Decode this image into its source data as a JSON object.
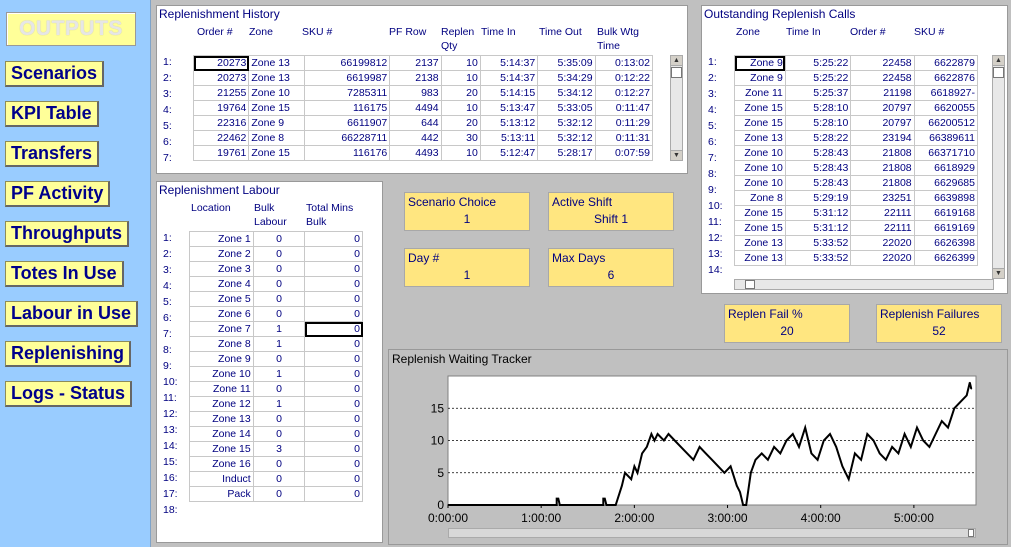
{
  "nav": {
    "title": "OUTPUTS",
    "buttons": [
      "Scenarios",
      "KPI Table",
      "Transfers",
      "PF Activity",
      "Throughputs",
      "Totes In Use",
      "Labour in Use",
      "Replenishing",
      "Logs - Status"
    ]
  },
  "history": {
    "title": "Replenishment History",
    "headers": [
      "Order #",
      "Zone",
      "SKU #",
      "PF Row",
      "Replen Qty",
      "Time In",
      "Time Out",
      "Bulk Wtg Time"
    ],
    "rows": [
      [
        "1:",
        "20273",
        "Zone 13",
        "66199812",
        "2137",
        "10",
        "5:14:37",
        "5:35:09",
        "0:13:02"
      ],
      [
        "2:",
        "20273",
        "Zone 13",
        "6619987",
        "2138",
        "10",
        "5:14:37",
        "5:34:29",
        "0:12:22"
      ],
      [
        "3:",
        "21255",
        "Zone 10",
        "7285311",
        "983",
        "20",
        "5:14:15",
        "5:34:12",
        "0:12:27"
      ],
      [
        "4:",
        "19764",
        "Zone 15",
        "116175",
        "4494",
        "10",
        "5:13:47",
        "5:33:05",
        "0:11:47"
      ],
      [
        "5:",
        "22316",
        "Zone  9",
        "6611907",
        "644",
        "20",
        "5:13:12",
        "5:32:12",
        "0:11:29"
      ],
      [
        "6:",
        "22462",
        "Zone  8",
        "66228711",
        "442",
        "30",
        "5:13:11",
        "5:32:12",
        "0:11:31"
      ],
      [
        "7:",
        "19761",
        "Zone 15",
        "116176",
        "4493",
        "10",
        "5:12:47",
        "5:28:17",
        "0:07:59"
      ]
    ]
  },
  "outstanding": {
    "title": "Outstanding Replenish Calls",
    "headers": [
      "Zone",
      "Time In",
      "Order #",
      "SKU #"
    ],
    "rows": [
      [
        "1:",
        "Zone  9",
        "5:25:22",
        "22458",
        "6622879"
      ],
      [
        "2:",
        "Zone  9",
        "5:25:22",
        "22458",
        "6622876"
      ],
      [
        "3:",
        "Zone 11",
        "5:25:37",
        "21198",
        "6618927-"
      ],
      [
        "4:",
        "Zone 15",
        "5:28:10",
        "20797",
        "6620055"
      ],
      [
        "5:",
        "Zone 15",
        "5:28:10",
        "20797",
        "66200512"
      ],
      [
        "6:",
        "Zone 13",
        "5:28:22",
        "23194",
        "66389611"
      ],
      [
        "7:",
        "Zone 10",
        "5:28:43",
        "21808",
        "66371710"
      ],
      [
        "8:",
        "Zone 10",
        "5:28:43",
        "21808",
        "6618929"
      ],
      [
        "9:",
        "Zone 10",
        "5:28:43",
        "21808",
        "6629685"
      ],
      [
        "10:",
        "Zone  8",
        "5:29:19",
        "23251",
        "6639898"
      ],
      [
        "11:",
        "Zone 15",
        "5:31:12",
        "22111",
        "6619168"
      ],
      [
        "12:",
        "Zone 15",
        "5:31:12",
        "22111",
        "6619169"
      ],
      [
        "13:",
        "Zone 13",
        "5:33:52",
        "22020",
        "6626398"
      ],
      [
        "14:",
        "Zone 13",
        "5:33:52",
        "22020",
        "6626399"
      ]
    ]
  },
  "labour": {
    "title": "Replenishment Labour",
    "headers": [
      "Location",
      "Bulk Labour",
      "Total Mins Bulk"
    ],
    "rows": [
      [
        "1:",
        "Zone  1",
        "0",
        "0"
      ],
      [
        "2:",
        "Zone  2",
        "0",
        "0"
      ],
      [
        "3:",
        "Zone  3",
        "0",
        "0"
      ],
      [
        "4:",
        "Zone  4",
        "0",
        "0"
      ],
      [
        "5:",
        "Zone  5",
        "0",
        "0"
      ],
      [
        "6:",
        "Zone  6",
        "0",
        "0"
      ],
      [
        "7:",
        "Zone  7",
        "1",
        "0"
      ],
      [
        "8:",
        "Zone  8",
        "1",
        "0"
      ],
      [
        "9:",
        "Zone  9",
        "0",
        "0"
      ],
      [
        "10:",
        "Zone 10",
        "1",
        "0"
      ],
      [
        "11:",
        "Zone 11",
        "0",
        "0"
      ],
      [
        "12:",
        "Zone 12",
        "1",
        "0"
      ],
      [
        "13:",
        "Zone 13",
        "0",
        "0"
      ],
      [
        "14:",
        "Zone 14",
        "0",
        "0"
      ],
      [
        "15:",
        "Zone 15",
        "3",
        "0"
      ],
      [
        "16:",
        "Zone 16",
        "0",
        "0"
      ],
      [
        "17:",
        "Induct",
        "0",
        "0"
      ],
      [
        "18:",
        "Pack",
        "0",
        "0"
      ]
    ]
  },
  "info": {
    "scenario_choice": {
      "label": "Scenario Choice",
      "value": "1"
    },
    "active_shift": {
      "label": "Active Shift",
      "value": "Shift 1"
    },
    "day": {
      "label": "Day #",
      "value": "1"
    },
    "max_days": {
      "label": "Max Days",
      "value": "6"
    },
    "replen_fail_pct": {
      "label": "Replen Fail %",
      "value": "20"
    },
    "replen_failures": {
      "label": "Replenish Failures",
      "value": "52"
    }
  },
  "chart_data": {
    "type": "line",
    "title": "Replenish Waiting Tracker",
    "xlabel": "",
    "ylabel": "",
    "xlim_minutes": [
      0,
      340
    ],
    "ylim": [
      0,
      20
    ],
    "yticks": [
      0,
      5,
      10,
      15
    ],
    "xtick_labels": [
      "0:00:00",
      "1:00:00",
      "2:00:00",
      "3:00:00",
      "4:00:00",
      "5:00:00"
    ],
    "grid": "horizontal dashed",
    "x_minutes": [
      0,
      60,
      70,
      70,
      71,
      72,
      95,
      100,
      100,
      101,
      102,
      108,
      112,
      114,
      118,
      120,
      122,
      125,
      128,
      131,
      133,
      135,
      139,
      142,
      146,
      150,
      154,
      158,
      162,
      166,
      170,
      174,
      178,
      182,
      186,
      188,
      190,
      192,
      195,
      198,
      202,
      206,
      210,
      214,
      218,
      222,
      226,
      230,
      234,
      238,
      242,
      246,
      250,
      254,
      258,
      262,
      266,
      270,
      274,
      278,
      282,
      286,
      290,
      294,
      298,
      302,
      306,
      310,
      314,
      318,
      322,
      326,
      330,
      334,
      336,
      337
    ],
    "values": [
      0,
      0,
      0,
      1,
      1,
      0,
      0,
      0,
      1,
      1,
      0,
      0,
      3,
      5,
      4,
      6,
      5,
      8,
      9,
      11,
      10,
      11,
      10,
      11,
      10,
      9,
      8,
      7,
      9,
      8,
      7,
      6,
      5,
      6,
      3,
      2,
      0,
      0,
      5,
      7,
      8,
      7,
      9,
      8,
      10,
      11,
      9,
      12,
      8,
      7,
      10,
      11,
      9,
      6,
      4,
      8,
      7,
      11,
      10,
      8,
      7,
      9,
      8,
      11,
      9,
      12,
      10,
      9,
      11,
      13,
      12,
      15,
      16,
      17,
      19,
      18
    ]
  }
}
